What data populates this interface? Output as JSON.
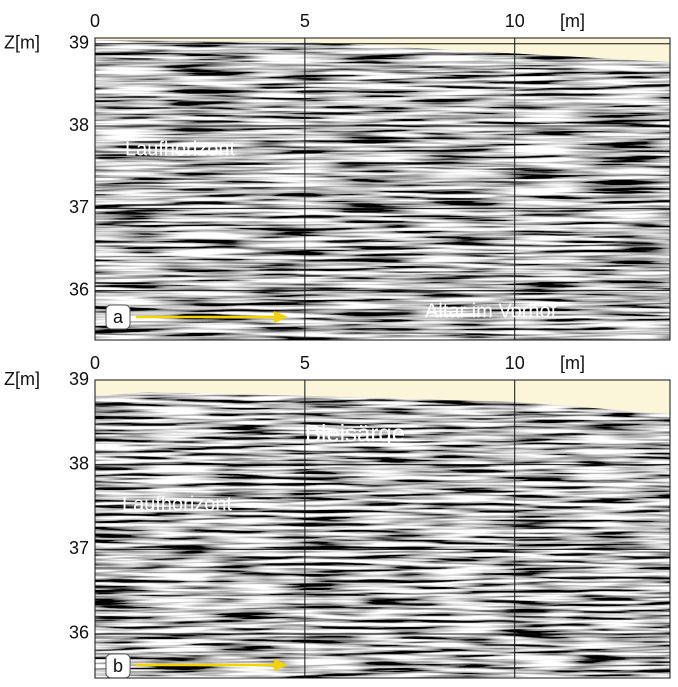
{
  "chart_data": [
    {
      "type": "radargram",
      "panel_label": "a",
      "x_label": "[m]",
      "y_label": "Z[m]",
      "xlim": [
        0,
        13.7
      ],
      "xticks": [
        0,
        5,
        10
      ],
      "ylim": [
        35.4,
        39.07
      ],
      "yticks": [
        36,
        37,
        38,
        39
      ],
      "grid": true,
      "annotations": [
        "Laufhorizont",
        "Altar im Vorhof"
      ]
    },
    {
      "type": "radargram",
      "panel_label": "b",
      "x_label": "[m]",
      "y_label": "Z[m]",
      "xlim": [
        0,
        13.7
      ],
      "xticks": [
        0,
        5,
        10
      ],
      "ylim": [
        35.48,
        39.0
      ],
      "yticks": [
        36,
        37,
        38,
        39
      ],
      "grid": true,
      "annotations": [
        "Bleisärge",
        "Laufhorizont"
      ]
    }
  ]
}
